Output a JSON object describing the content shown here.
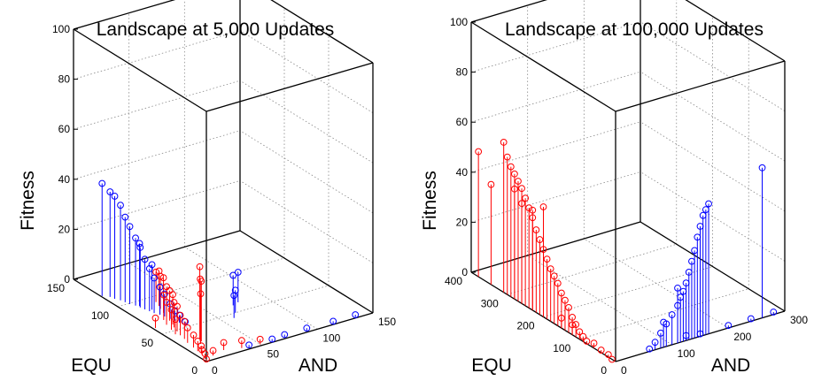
{
  "chart_data": [
    {
      "type": "scatter",
      "title": "Landscape at 5,000 Updates",
      "xlabel": "AND",
      "ylabel": "EQU",
      "zlabel": "Fitness",
      "xlim": [
        0,
        150
      ],
      "ylim": [
        0,
        150
      ],
      "zlim": [
        0,
        100
      ],
      "xticks": [
        "0",
        "50",
        "100",
        "150"
      ],
      "yticks": [
        "0",
        "50",
        "100",
        "150"
      ],
      "zticks": [
        "0",
        "20",
        "40",
        "60",
        "80",
        "100"
      ],
      "colors": {
        "red": "#ff0000",
        "blue": "#0000ff"
      },
      "series": [
        {
          "color": "red",
          "points": [
            [
              0,
              0,
              1
            ],
            [
              2,
              4,
              2
            ],
            [
              4,
              10,
              2
            ],
            [
              5,
              16,
              4
            ],
            [
              6,
              22,
              5
            ],
            [
              7,
              30,
              6
            ],
            [
              9,
              36,
              7
            ],
            [
              10,
              42,
              8
            ],
            [
              12,
              48,
              10
            ],
            [
              14,
              54,
              10
            ],
            [
              16,
              58,
              12
            ],
            [
              18,
              64,
              12
            ],
            [
              20,
              70,
              12
            ],
            [
              22,
              76,
              14
            ],
            [
              24,
              82,
              13
            ],
            [
              26,
              86,
              14
            ],
            [
              28,
              92,
              12
            ],
            [
              8,
              45,
              6
            ],
            [
              10,
              52,
              8
            ],
            [
              12,
              60,
              9
            ],
            [
              15,
              67,
              10
            ],
            [
              18,
              75,
              11
            ],
            [
              2,
              60,
              4
            ],
            [
              5,
              12,
              3
            ],
            [
              10,
              5,
              2
            ],
            [
              22,
              8,
              3
            ],
            [
              35,
              4,
              3
            ],
            [
              50,
              2,
              2
            ],
            [
              14,
              24,
              20
            ],
            [
              16,
              27,
              25
            ],
            [
              18,
              30,
              29
            ],
            [
              17,
              27,
              24
            ]
          ]
        },
        {
          "color": "blue",
          "points": [
            [
              5,
              115,
              42
            ],
            [
              6,
              111,
              41
            ],
            [
              8,
              107,
              38
            ],
            [
              9,
              103,
              34
            ],
            [
              10,
              99,
              31
            ],
            [
              12,
              95,
              27
            ],
            [
              13,
              91,
              24
            ],
            [
              14,
              87,
              20
            ],
            [
              15,
              83,
              17
            ],
            [
              16,
              79,
              14
            ],
            [
              18,
              75,
              11
            ],
            [
              19,
              71,
              9
            ],
            [
              20,
              66,
              6
            ],
            [
              21,
              62,
              4
            ],
            [
              22,
              58,
              3
            ],
            [
              24,
              54,
              1
            ],
            [
              1,
              119,
              45
            ],
            [
              14,
              93,
              25
            ],
            [
              18,
              84,
              18
            ],
            [
              60,
              44,
              9
            ],
            [
              66,
              50,
              9
            ],
            [
              72,
              60,
              12
            ],
            [
              78,
              62,
              12
            ],
            [
              60,
              1,
              1
            ],
            [
              72,
              2,
              1
            ],
            [
              92,
              2,
              1
            ],
            [
              115,
              1,
              1
            ],
            [
              135,
              1,
              1
            ],
            [
              40,
              2,
              1
            ]
          ]
        }
      ]
    },
    {
      "type": "scatter",
      "title": "Landscape at 100,000 Updates",
      "xlabel": "AND",
      "ylabel": "EQU",
      "zlabel": "Fitness",
      "xlim": [
        0,
        300
      ],
      "ylim": [
        0,
        400
      ],
      "zlim": [
        0,
        100
      ],
      "xticks": [
        "0",
        "100",
        "200",
        "300"
      ],
      "yticks": [
        "0",
        "100",
        "200",
        "300",
        "400"
      ],
      "zticks": [
        "0",
        "20",
        "40",
        "60",
        "80",
        "100"
      ],
      "colors": {
        "red": "#ff0000",
        "blue": "#0000ff"
      },
      "series": [
        {
          "color": "red",
          "points": [
            [
              0,
              380,
              50
            ],
            [
              0,
              345,
              40
            ],
            [
              0,
              300,
              55
            ],
            [
              0,
              310,
              60
            ],
            [
              0,
              290,
              52
            ],
            [
              0,
              280,
              50
            ],
            [
              0,
              270,
              48
            ],
            [
              0,
              260,
              46
            ],
            [
              0,
              250,
              43
            ],
            [
              0,
              240,
              40
            ],
            [
              0,
              230,
              37
            ],
            [
              0,
              220,
              33
            ],
            [
              0,
              210,
              30
            ],
            [
              0,
              200,
              27
            ],
            [
              0,
              190,
              24
            ],
            [
              0,
              180,
              21
            ],
            [
              0,
              170,
              19
            ],
            [
              0,
              160,
              17
            ],
            [
              0,
              150,
              14
            ],
            [
              0,
              140,
              12
            ],
            [
              0,
              130,
              10
            ],
            [
              0,
              120,
              7
            ],
            [
              0,
              110,
              5
            ],
            [
              0,
              100,
              3
            ],
            [
              0,
              90,
              2
            ],
            [
              0,
              80,
              1
            ],
            [
              0,
              200,
              44
            ],
            [
              0,
              230,
              40
            ],
            [
              0,
              260,
              40
            ],
            [
              0,
              280,
              44
            ],
            [
              0,
              150,
              4
            ],
            [
              0,
              120,
              4
            ],
            [
              0,
              60,
              2
            ],
            [
              0,
              40,
              1
            ],
            [
              0,
              20,
              1
            ],
            [
              0,
              10,
              0
            ]
          ]
        },
        {
          "color": "blue",
          "points": [
            [
              60,
              0,
              1
            ],
            [
              70,
              0,
              3
            ],
            [
              80,
              0,
              6
            ],
            [
              90,
              0,
              9
            ],
            [
              100,
              0,
              12
            ],
            [
              110,
              0,
              15
            ],
            [
              115,
              0,
              18
            ],
            [
              120,
              0,
              20
            ],
            [
              125,
              0,
              23
            ],
            [
              130,
              0,
              27
            ],
            [
              135,
              0,
              31
            ],
            [
              140,
              0,
              35
            ],
            [
              145,
              0,
              40
            ],
            [
              150,
              0,
              44
            ],
            [
              155,
              0,
              48
            ],
            [
              160,
              0,
              50
            ],
            [
              165,
              0,
              52
            ],
            [
              85,
              0,
              10
            ],
            [
              110,
              0,
              22
            ],
            [
              260,
              0,
              60
            ],
            [
              200,
              0,
              1
            ],
            [
              240,
              0,
              1
            ],
            [
              280,
              0,
              1
            ],
            [
              150,
              0,
              1
            ],
            [
              125,
              0,
              2
            ]
          ]
        }
      ]
    }
  ]
}
